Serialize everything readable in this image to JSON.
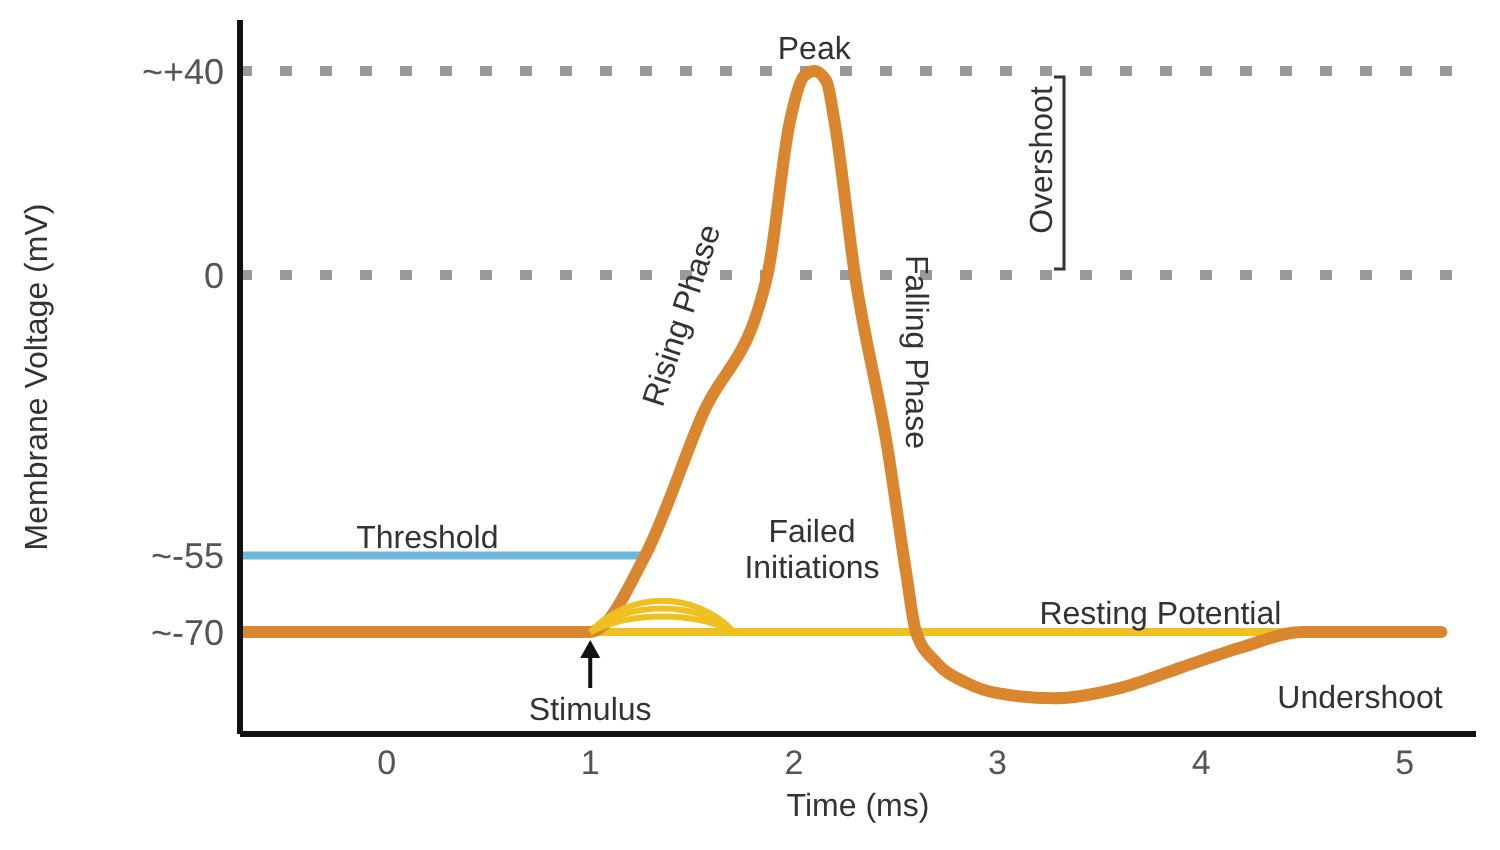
{
  "chart_data": {
    "type": "line",
    "xlabel": "Time (ms)",
    "ylabel": "Membrane Voltage (mV)",
    "xlim": [
      -0.72,
      5.35
    ],
    "xticks": [
      0,
      1,
      2,
      3,
      4,
      5
    ],
    "ylim": [
      -90,
      50
    ],
    "yticks": [
      {
        "value": 40,
        "label": "~+40"
      },
      0,
      {
        "value": -55,
        "label": "~-55"
      },
      {
        "value": -70,
        "label": "~-70"
      }
    ],
    "grid": false,
    "legend": false,
    "ref_lines": [
      {
        "axis": "y",
        "value": 40,
        "color": "#9a9a9a",
        "line_style": "dotted"
      },
      {
        "axis": "y",
        "value": 0,
        "color": "#9a9a9a",
        "line_style": "dotted"
      }
    ],
    "series": [
      {
        "color": "#6cb8dc",
        "x": [
          -0.72,
          1.27
        ],
        "values": [
          -55,
          -55
        ]
      },
      {
        "color": "#f0c020",
        "x": [
          1.0,
          4.5
        ],
        "values": [
          -70,
          -70
        ]
      },
      {
        "color": "#d9862e",
        "x": [
          -0.72,
          1.0,
          1.27,
          1.55,
          1.87,
          1.98,
          2.05,
          2.1,
          2.16,
          2.2,
          2.3,
          2.46,
          2.55,
          2.6,
          2.7,
          2.85,
          3.0,
          3.28,
          3.6,
          3.9,
          4.2,
          4.5,
          5.18
        ],
        "values": [
          -70,
          -70,
          -55,
          -27.5,
          0,
          30,
          39,
          40,
          38,
          30,
          0,
          -34,
          -58,
          -70,
          -76,
          -80,
          -82,
          -83,
          -81,
          -77,
          -73,
          -70,
          -70
        ]
      }
    ],
    "annotations": [
      {
        "text": "Peak",
        "x": 2.1,
        "y": 40
      },
      "Rising Phase",
      "Falling Phase",
      "Overshoot",
      "Failed Initiations",
      {
        "text": "Resting Potential",
        "x": 3.8,
        "y": -70
      },
      "Undershoot",
      {
        "text": "Stimulus",
        "x": 1.0,
        "y": -70
      },
      {
        "text": "Threshold",
        "x": 0.2,
        "y": -55
      }
    ]
  }
}
